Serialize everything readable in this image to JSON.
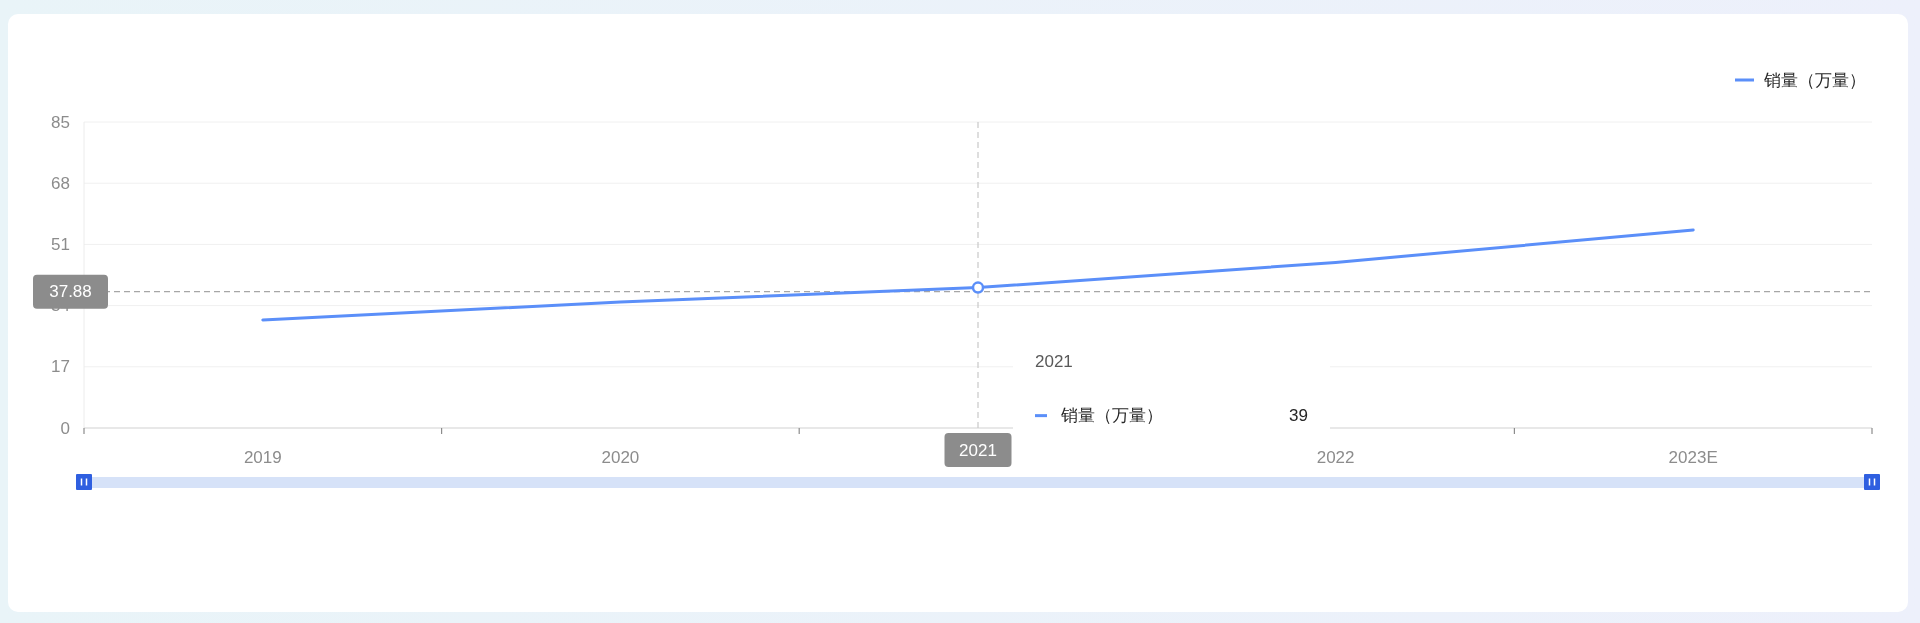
{
  "chart_data": {
    "type": "line",
    "categories": [
      "2019",
      "2020",
      "2021",
      "2022",
      "2023E"
    ],
    "series": [
      {
        "name": "销量（万量）",
        "color": "#5b8ff9",
        "values": [
          30,
          35,
          39,
          46,
          55
        ]
      },
      {
        "type": "scatter",
        "values": [
          null,
          null,
          39,
          null,
          null
        ],
        "color": "#5b8ff9",
        "marker": "circle"
      }
    ],
    "ylim": [
      0,
      85
    ],
    "yticks": [
      0,
      17,
      34,
      51,
      68,
      85
    ],
    "grid": "y",
    "legend": "top right",
    "ref_lines": [
      {
        "axis": "y",
        "value": 37.88,
        "label": "37.88",
        "line_style": "dashed",
        "color": "#a6a6a6"
      },
      {
        "axis": "x",
        "value": "2021",
        "line_style": "dashed",
        "color": "#c8c8c8"
      }
    ],
    "annotations": [
      "2021",
      "销量（万量）",
      "39"
    ]
  }
}
